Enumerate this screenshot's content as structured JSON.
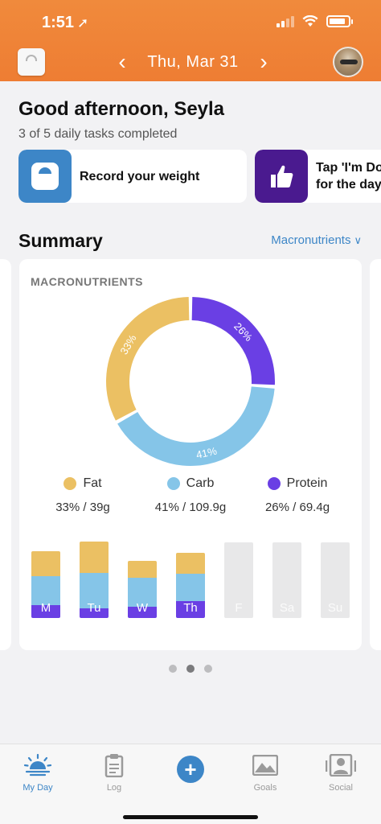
{
  "status": {
    "time": "1:51"
  },
  "header": {
    "date": "Thu, Mar 31",
    "prev_icon": "chevron-left-icon",
    "next_icon": "chevron-right-icon"
  },
  "greeting": {
    "title": "Good afternoon, Seyla",
    "tasks": "3 of 5 daily tasks completed"
  },
  "tasks": [
    {
      "label": "Record your weight",
      "icon": "scale-icon"
    },
    {
      "label_line1": "Tap 'I'm Do",
      "label_line2": "for the day",
      "icon": "thumbs-up-icon"
    }
  ],
  "summary": {
    "title": "Summary",
    "selector": "Macronutrients"
  },
  "colors": {
    "fat": "#ebc063",
    "carb": "#85c5e8",
    "protein": "#6a3fe4",
    "accent": "#3d86c7",
    "header": "#ee7d33"
  },
  "chart_data": {
    "title": "MACRONUTRIENTS",
    "donut": {
      "type": "pie",
      "slices": [
        {
          "name": "Fat",
          "percent": 33,
          "label": "33%",
          "grams": "39g"
        },
        {
          "name": "Carb",
          "percent": 41,
          "label": "41%",
          "grams": "109.9g"
        },
        {
          "name": "Protein",
          "percent": 26,
          "label": "26%",
          "grams": "69.4g"
        }
      ]
    },
    "legend": [
      {
        "name": "Fat",
        "value": "33% / 39g"
      },
      {
        "name": "Carb",
        "value": "41% / 109.9g"
      },
      {
        "name": "Protein",
        "value": "26% / 69.4g"
      }
    ],
    "weekly": {
      "type": "bar",
      "categories": [
        "M",
        "Tu",
        "W",
        "Th",
        "F",
        "Sa",
        "Su"
      ],
      "max": 94,
      "series": [
        {
          "name": "Protein",
          "values": [
            16,
            12,
            14,
            21,
            0,
            0,
            0
          ]
        },
        {
          "name": "Carb",
          "values": [
            36,
            44,
            36,
            34,
            0,
            0,
            0
          ]
        },
        {
          "name": "Fat",
          "values": [
            31,
            39,
            21,
            26,
            0,
            0,
            0
          ]
        }
      ]
    }
  },
  "pager": {
    "count": 3,
    "active": 1
  },
  "tabs": [
    {
      "label": "My Day",
      "icon": "sunrise-icon",
      "active": true
    },
    {
      "label": "Log",
      "icon": "clipboard-icon",
      "active": false
    },
    {
      "label": "",
      "icon": "plus-icon",
      "active": false
    },
    {
      "label": "Goals",
      "icon": "mountain-icon",
      "active": false
    },
    {
      "label": "Social",
      "icon": "people-icon",
      "active": false
    }
  ]
}
